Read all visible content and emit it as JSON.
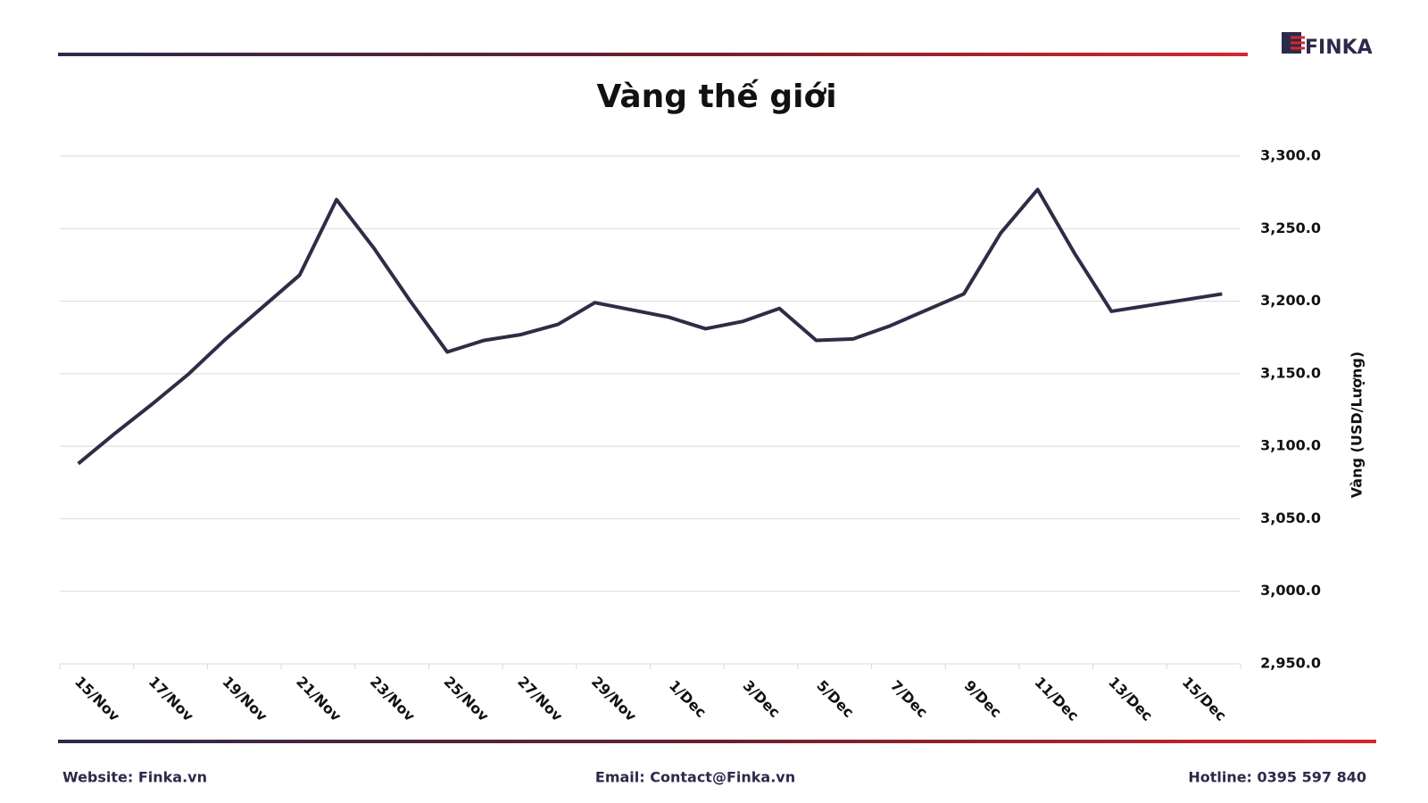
{
  "logo": "FINKA",
  "chart_data": {
    "type": "line",
    "title": "Vàng thế giới",
    "y_axis_label": "Vàng (USD/Lượng)",
    "categories": [
      "15/Nov",
      null,
      "17/Nov",
      null,
      "19/Nov",
      null,
      "21/Nov",
      null,
      "23/Nov",
      null,
      "25/Nov",
      null,
      "27/Nov",
      null,
      "29/Nov",
      null,
      "1/Dec",
      null,
      "3/Dec",
      null,
      "5/Dec",
      null,
      "7/Dec",
      null,
      "9/Dec",
      null,
      "11/Dec",
      null,
      "13/Dec",
      null,
      "15/Dec",
      null
    ],
    "values": [
      3088,
      3109,
      3129,
      3150,
      3174,
      3196,
      3218,
      3270,
      3237,
      3200,
      3165,
      3173,
      3177,
      3184,
      3199,
      3194,
      3189,
      3181,
      3186,
      3195,
      3173,
      3174,
      3183,
      3194,
      3205,
      3247,
      3277,
      3233,
      3193,
      3197,
      3201,
      3205
    ],
    "color": "#342a45",
    "ylim": [
      2950,
      3300
    ],
    "yticks": [
      {
        "value": 2950,
        "label": "2,950.0"
      },
      {
        "value": 3000,
        "label": "3,000.0"
      },
      {
        "value": 3050,
        "label": "3,050.0"
      },
      {
        "value": 3100,
        "label": "3,100.0"
      },
      {
        "value": 3150,
        "label": "3,150.0"
      },
      {
        "value": 3200,
        "label": "3,200.0"
      },
      {
        "value": 3250,
        "label": "3,250.0"
      },
      {
        "value": 3300,
        "label": "3,300.0"
      }
    ],
    "grid": true
  },
  "footer": {
    "website": "Website: Finka.vn",
    "email": "Email: Contact@Finka.vn",
    "hotline": "Hotline: 0395 597 840"
  }
}
